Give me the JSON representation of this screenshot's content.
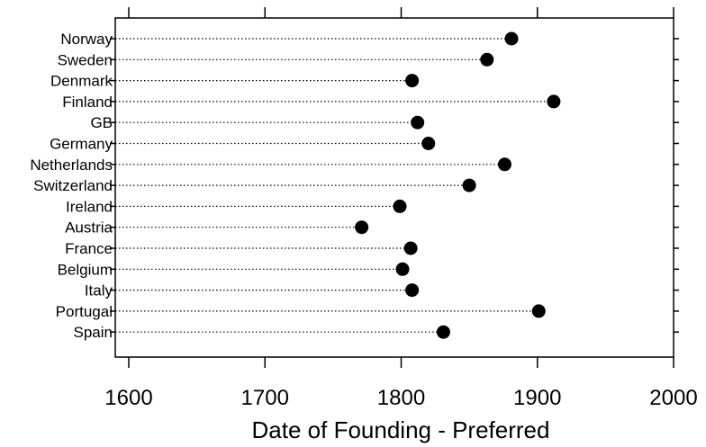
{
  "chart_data": {
    "type": "scatter",
    "subtype": "dot-plot",
    "xlabel": "Date of Founding - Preferred",
    "ylabel": "",
    "xlim": [
      1600,
      2000
    ],
    "x_ticks": [
      1600,
      1700,
      1800,
      1900,
      2000
    ],
    "x_tick_labels": [
      "1600",
      "1700",
      "1800",
      "1900",
      "2000"
    ],
    "categories": [
      "Norway",
      "Sweden",
      "Denmark",
      "Finland",
      "GB",
      "Germany",
      "Netherlands",
      "Switzerland",
      "Ireland",
      "Austria",
      "France",
      "Belgium",
      "Italy",
      "Portugal",
      "Spain"
    ],
    "values": [
      1881,
      1863,
      1808,
      1912,
      1812,
      1820,
      1876,
      1850,
      1799,
      1771,
      1807,
      1801,
      1808,
      1901,
      1831
    ],
    "grid": false,
    "legend": "none",
    "marker_color": "#000000"
  }
}
